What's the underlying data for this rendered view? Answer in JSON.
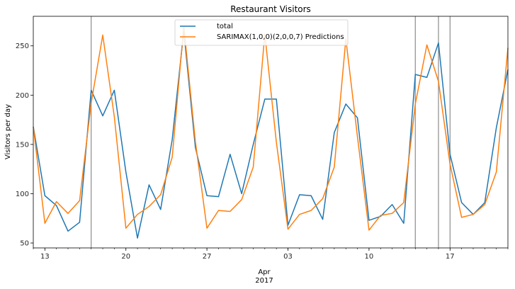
{
  "chart_data": {
    "type": "line",
    "title": "Restaurant Visitors",
    "xlabel_main": "Apr",
    "xlabel_year": "2017",
    "ylabel": "Visitors per day",
    "x_tick_labels": [
      {
        "day": 1,
        "label": "13"
      },
      {
        "day": 8,
        "label": "20"
      },
      {
        "day": 15,
        "label": "27"
      },
      {
        "day": 22,
        "label": "03"
      },
      {
        "day": 29,
        "label": "10"
      },
      {
        "day": 36,
        "label": "17"
      }
    ],
    "x_start_date": "2017-03-12",
    "x_end_date": "2017-04-22",
    "y_ticks": [
      50,
      100,
      150,
      200,
      250
    ],
    "ylim": [
      45,
      280
    ],
    "holiday_dates": [
      "2017-03-17",
      "2017-04-14",
      "2017-04-16",
      "2017-04-17"
    ],
    "series": [
      {
        "name": "total",
        "color": "#1f77b4",
        "values": [
          168,
          98,
          88,
          62,
          71,
          205,
          179,
          205,
          122,
          55,
          109,
          84,
          155,
          265,
          147,
          98,
          97,
          140,
          100,
          150,
          196,
          196,
          68,
          99,
          98,
          74,
          162,
          191,
          177,
          73,
          77,
          89,
          70,
          221,
          218,
          253,
          140,
          91,
          79,
          91,
          167,
          226
        ]
      },
      {
        "name": "SARIMAX(1,0,0)(2,0,0,7) Predictions",
        "color": "#ff7f0e",
        "values": [
          168,
          70,
          92,
          80,
          93,
          192,
          261,
          178,
          65,
          79,
          87,
          99,
          137,
          270,
          153,
          65,
          83,
          82,
          94,
          127,
          262,
          152,
          64,
          79,
          83,
          95,
          127,
          257,
          158,
          63,
          78,
          80,
          91,
          191,
          251,
          214,
          130,
          76,
          79,
          89,
          122,
          248
        ]
      }
    ]
  }
}
